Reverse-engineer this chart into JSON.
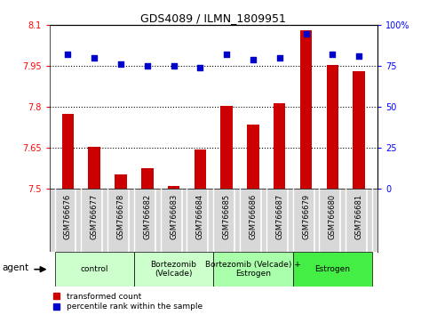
{
  "title": "GDS4089 / ILMN_1809951",
  "samples": [
    "GSM766676",
    "GSM766677",
    "GSM766678",
    "GSM766682",
    "GSM766683",
    "GSM766684",
    "GSM766685",
    "GSM766686",
    "GSM766687",
    "GSM766679",
    "GSM766680",
    "GSM766681"
  ],
  "red_values": [
    7.775,
    7.655,
    7.555,
    7.575,
    7.51,
    7.645,
    7.805,
    7.735,
    7.815,
    8.08,
    7.955,
    7.93
  ],
  "blue_values": [
    82,
    80,
    76,
    75,
    75,
    74,
    82,
    79,
    80,
    95,
    82,
    81
  ],
  "ylim_left": [
    7.5,
    8.1
  ],
  "ylim_right": [
    0,
    100
  ],
  "yticks_left": [
    7.5,
    7.65,
    7.8,
    7.95,
    8.1
  ],
  "yticks_right": [
    0,
    25,
    50,
    75,
    100
  ],
  "ytick_labels_left": [
    "7.5",
    "7.65",
    "7.8",
    "7.95",
    "8.1"
  ],
  "ytick_labels_right": [
    "0",
    "25",
    "50",
    "75",
    "100%"
  ],
  "hlines": [
    7.65,
    7.8,
    7.95
  ],
  "groups": [
    {
      "label": "control",
      "start": 0,
      "end": 3,
      "color": "#ccffcc"
    },
    {
      "label": "Bortezomib\n(Velcade)",
      "start": 3,
      "end": 6,
      "color": "#ccffcc"
    },
    {
      "label": "Bortezomib (Velcade) +\nEstrogen",
      "start": 6,
      "end": 9,
      "color": "#aaffaa"
    },
    {
      "label": "Estrogen",
      "start": 9,
      "end": 12,
      "color": "#44ee44"
    }
  ],
  "bar_color": "#cc0000",
  "dot_color": "#0000cc",
  "bar_width": 0.45,
  "plot_bg": "#ffffff",
  "cell_bg": "#d8d8d8",
  "cell_border": "#ffffff"
}
